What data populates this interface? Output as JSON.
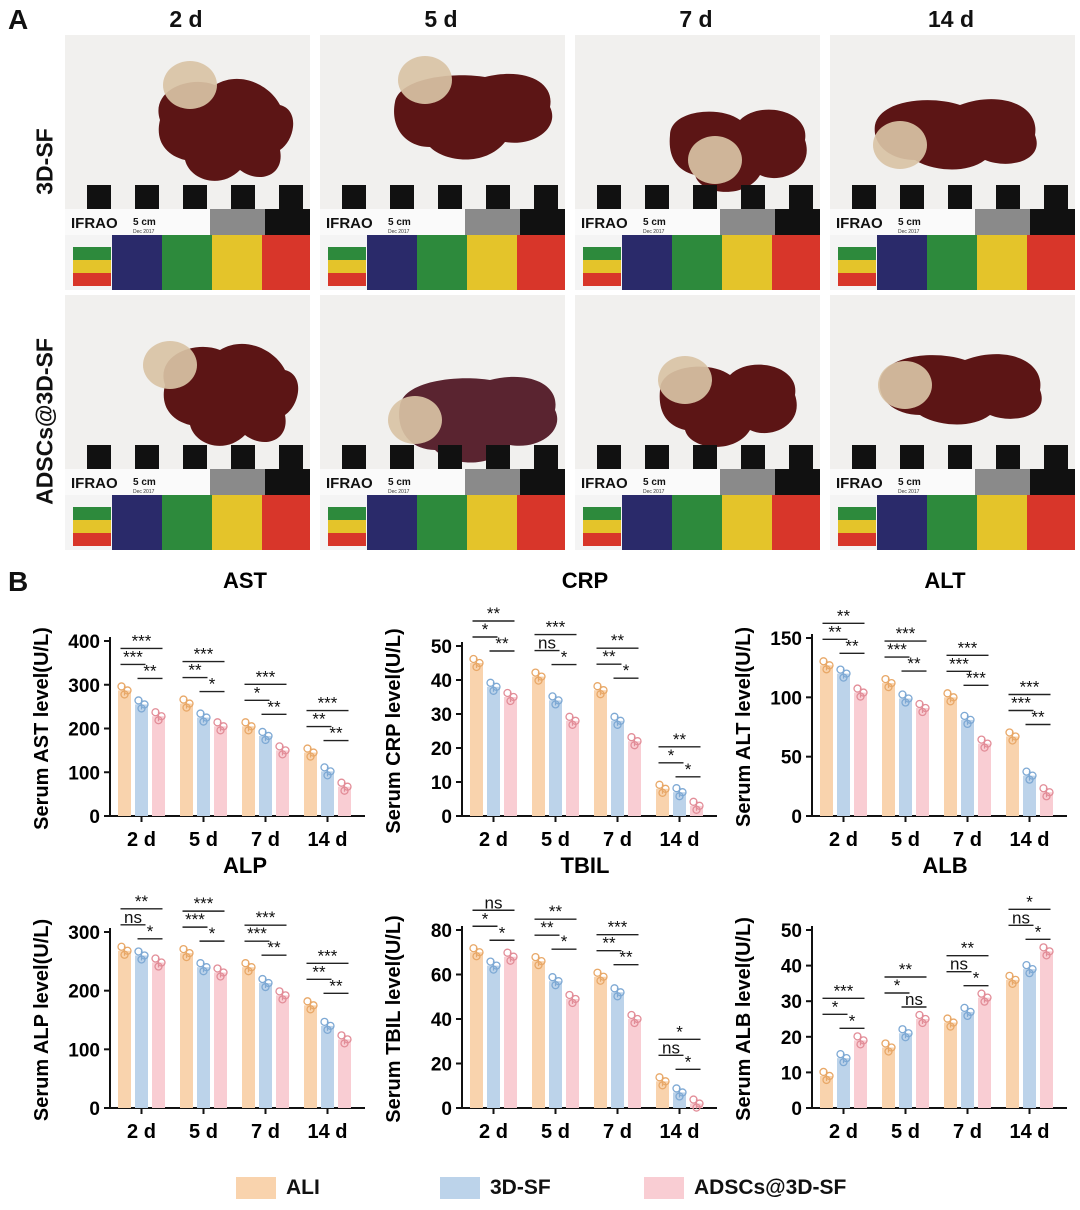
{
  "panel_a": {
    "letter": "A",
    "days": [
      "2 d",
      "5 d",
      "7 d",
      "14 d"
    ],
    "rows": [
      "3D-SF",
      "ADSCs@3D-SF"
    ],
    "scale_card": {
      "brand": "IFRAO",
      "scale_text": "5 cm",
      "date_text": "Dec 2017"
    }
  },
  "panel_b": {
    "letter": "B"
  },
  "colors": {
    "ALI": "#f9d3ad",
    "3D-SF": "#bcd3ea",
    "ADSCs@3D-SF": "#f9cdd3",
    "ALI_dot": "#e8a868",
    "3D-SF_dot": "#7ea9d4",
    "ADSCs_dot": "#e28d98"
  },
  "legend": [
    "ALI",
    "3D-SF",
    "ADSCs@3D-SF"
  ],
  "chart_data": [
    {
      "type": "bar",
      "title": "AST",
      "ylabel": "Serum AST level(U/L)",
      "categories": [
        "2 d",
        "5 d",
        "7 d",
        "14 d"
      ],
      "ylim": [
        0,
        400
      ],
      "yticks": [
        0,
        100,
        200,
        300,
        400
      ],
      "series": [
        {
          "name": "ALI",
          "values": [
            287,
            257,
            205,
            145
          ]
        },
        {
          "name": "3D-SF",
          "values": [
            255,
            225,
            183,
            102
          ]
        },
        {
          "name": "ADSCs@3D-SF",
          "values": [
            228,
            205,
            150,
            67
          ]
        }
      ],
      "annotations": [
        [
          "***",
          "***",
          "**"
        ],
        [
          "***",
          "**",
          "*"
        ],
        [
          "***",
          "*",
          "**"
        ],
        [
          "***",
          "**",
          "**"
        ]
      ]
    },
    {
      "type": "bar",
      "title": "CRP",
      "ylabel": "Serum CRP level(U/L)",
      "categories": [
        "2 d",
        "5 d",
        "7 d",
        "14 d"
      ],
      "ylim": [
        0,
        50
      ],
      "yticks": [
        0,
        10,
        20,
        30,
        40,
        50
      ],
      "series": [
        {
          "name": "ALI",
          "values": [
            45,
            41,
            37,
            8
          ]
        },
        {
          "name": "3D-SF",
          "values": [
            38,
            34,
            28,
            7
          ]
        },
        {
          "name": "ADSCs@3D-SF",
          "values": [
            35,
            28,
            22,
            3
          ]
        }
      ],
      "annotations": [
        [
          "**",
          "*",
          "**"
        ],
        [
          "***",
          "ns",
          "*"
        ],
        [
          "**",
          "**",
          "*"
        ],
        [
          "**",
          "*",
          "*"
        ]
      ]
    },
    {
      "type": "bar",
      "title": "ALT",
      "ylabel": "Serum ALT level(U/L)",
      "categories": [
        "2 d",
        "5 d",
        "7 d",
        "14 d"
      ],
      "ylim": [
        0,
        150
      ],
      "yticks": [
        0,
        50,
        100,
        150
      ],
      "series": [
        {
          "name": "ALI",
          "values": [
            127,
            112,
            100,
            67
          ]
        },
        {
          "name": "3D-SF",
          "values": [
            120,
            99,
            81,
            34
          ]
        },
        {
          "name": "ADSCs@3D-SF",
          "values": [
            104,
            91,
            61,
            20
          ]
        }
      ],
      "annotations": [
        [
          "**",
          "**",
          "**"
        ],
        [
          "***",
          "***",
          "**"
        ],
        [
          "***",
          "***",
          "***"
        ],
        [
          "***",
          "***",
          "**"
        ]
      ]
    },
    {
      "type": "bar",
      "title": "ALP",
      "ylabel": "Serum ALP level(U/L)",
      "categories": [
        "2 d",
        "5 d",
        "7 d",
        "14 d"
      ],
      "ylim": [
        0,
        300
      ],
      "yticks": [
        0,
        100,
        200,
        300
      ],
      "series": [
        {
          "name": "ALI",
          "values": [
            268,
            264,
            240,
            175
          ]
        },
        {
          "name": "3D-SF",
          "values": [
            260,
            240,
            213,
            140
          ]
        },
        {
          "name": "ADSCs@3D-SF",
          "values": [
            248,
            231,
            192,
            117
          ]
        }
      ],
      "annotations": [
        [
          "**",
          "ns",
          "*"
        ],
        [
          "***",
          "***",
          "*"
        ],
        [
          "***",
          "***",
          "**"
        ],
        [
          "***",
          "**",
          "**"
        ]
      ]
    },
    {
      "type": "bar",
      "title": "TBIL",
      "ylabel": "Serum TBIL level(U/L)",
      "categories": [
        "2 d",
        "5 d",
        "7 d",
        "14 d"
      ],
      "ylim": [
        0,
        80
      ],
      "yticks": [
        0,
        20,
        40,
        60,
        80
      ],
      "series": [
        {
          "name": "ALI",
          "values": [
            70,
            66,
            59,
            12
          ]
        },
        {
          "name": "3D-SF",
          "values": [
            64,
            57,
            52,
            7
          ]
        },
        {
          "name": "ADSCs@3D-SF",
          "values": [
            68,
            49,
            40,
            2
          ]
        }
      ],
      "annotations": [
        [
          "ns",
          "*",
          "*"
        ],
        [
          "**",
          "**",
          "*"
        ],
        [
          "***",
          "**",
          "**"
        ],
        [
          "*",
          "ns",
          "*"
        ]
      ]
    },
    {
      "type": "bar",
      "title": "ALB",
      "ylabel": "Serum ALB level(U/L)",
      "categories": [
        "2 d",
        "5 d",
        "7 d",
        "14 d"
      ],
      "ylim": [
        0,
        50
      ],
      "yticks": [
        0,
        10,
        20,
        30,
        40,
        50
      ],
      "series": [
        {
          "name": "ALI",
          "values": [
            9,
            17,
            24,
            36
          ]
        },
        {
          "name": "3D-SF",
          "values": [
            14,
            21,
            27,
            39
          ]
        },
        {
          "name": "ADSCs@3D-SF",
          "values": [
            19,
            25,
            31,
            44
          ]
        }
      ],
      "annotations": [
        [
          "***",
          "*",
          "*"
        ],
        [
          "**",
          "*",
          "ns"
        ],
        [
          "**",
          "ns",
          "*"
        ],
        [
          "*",
          "ns",
          "*"
        ]
      ]
    }
  ]
}
